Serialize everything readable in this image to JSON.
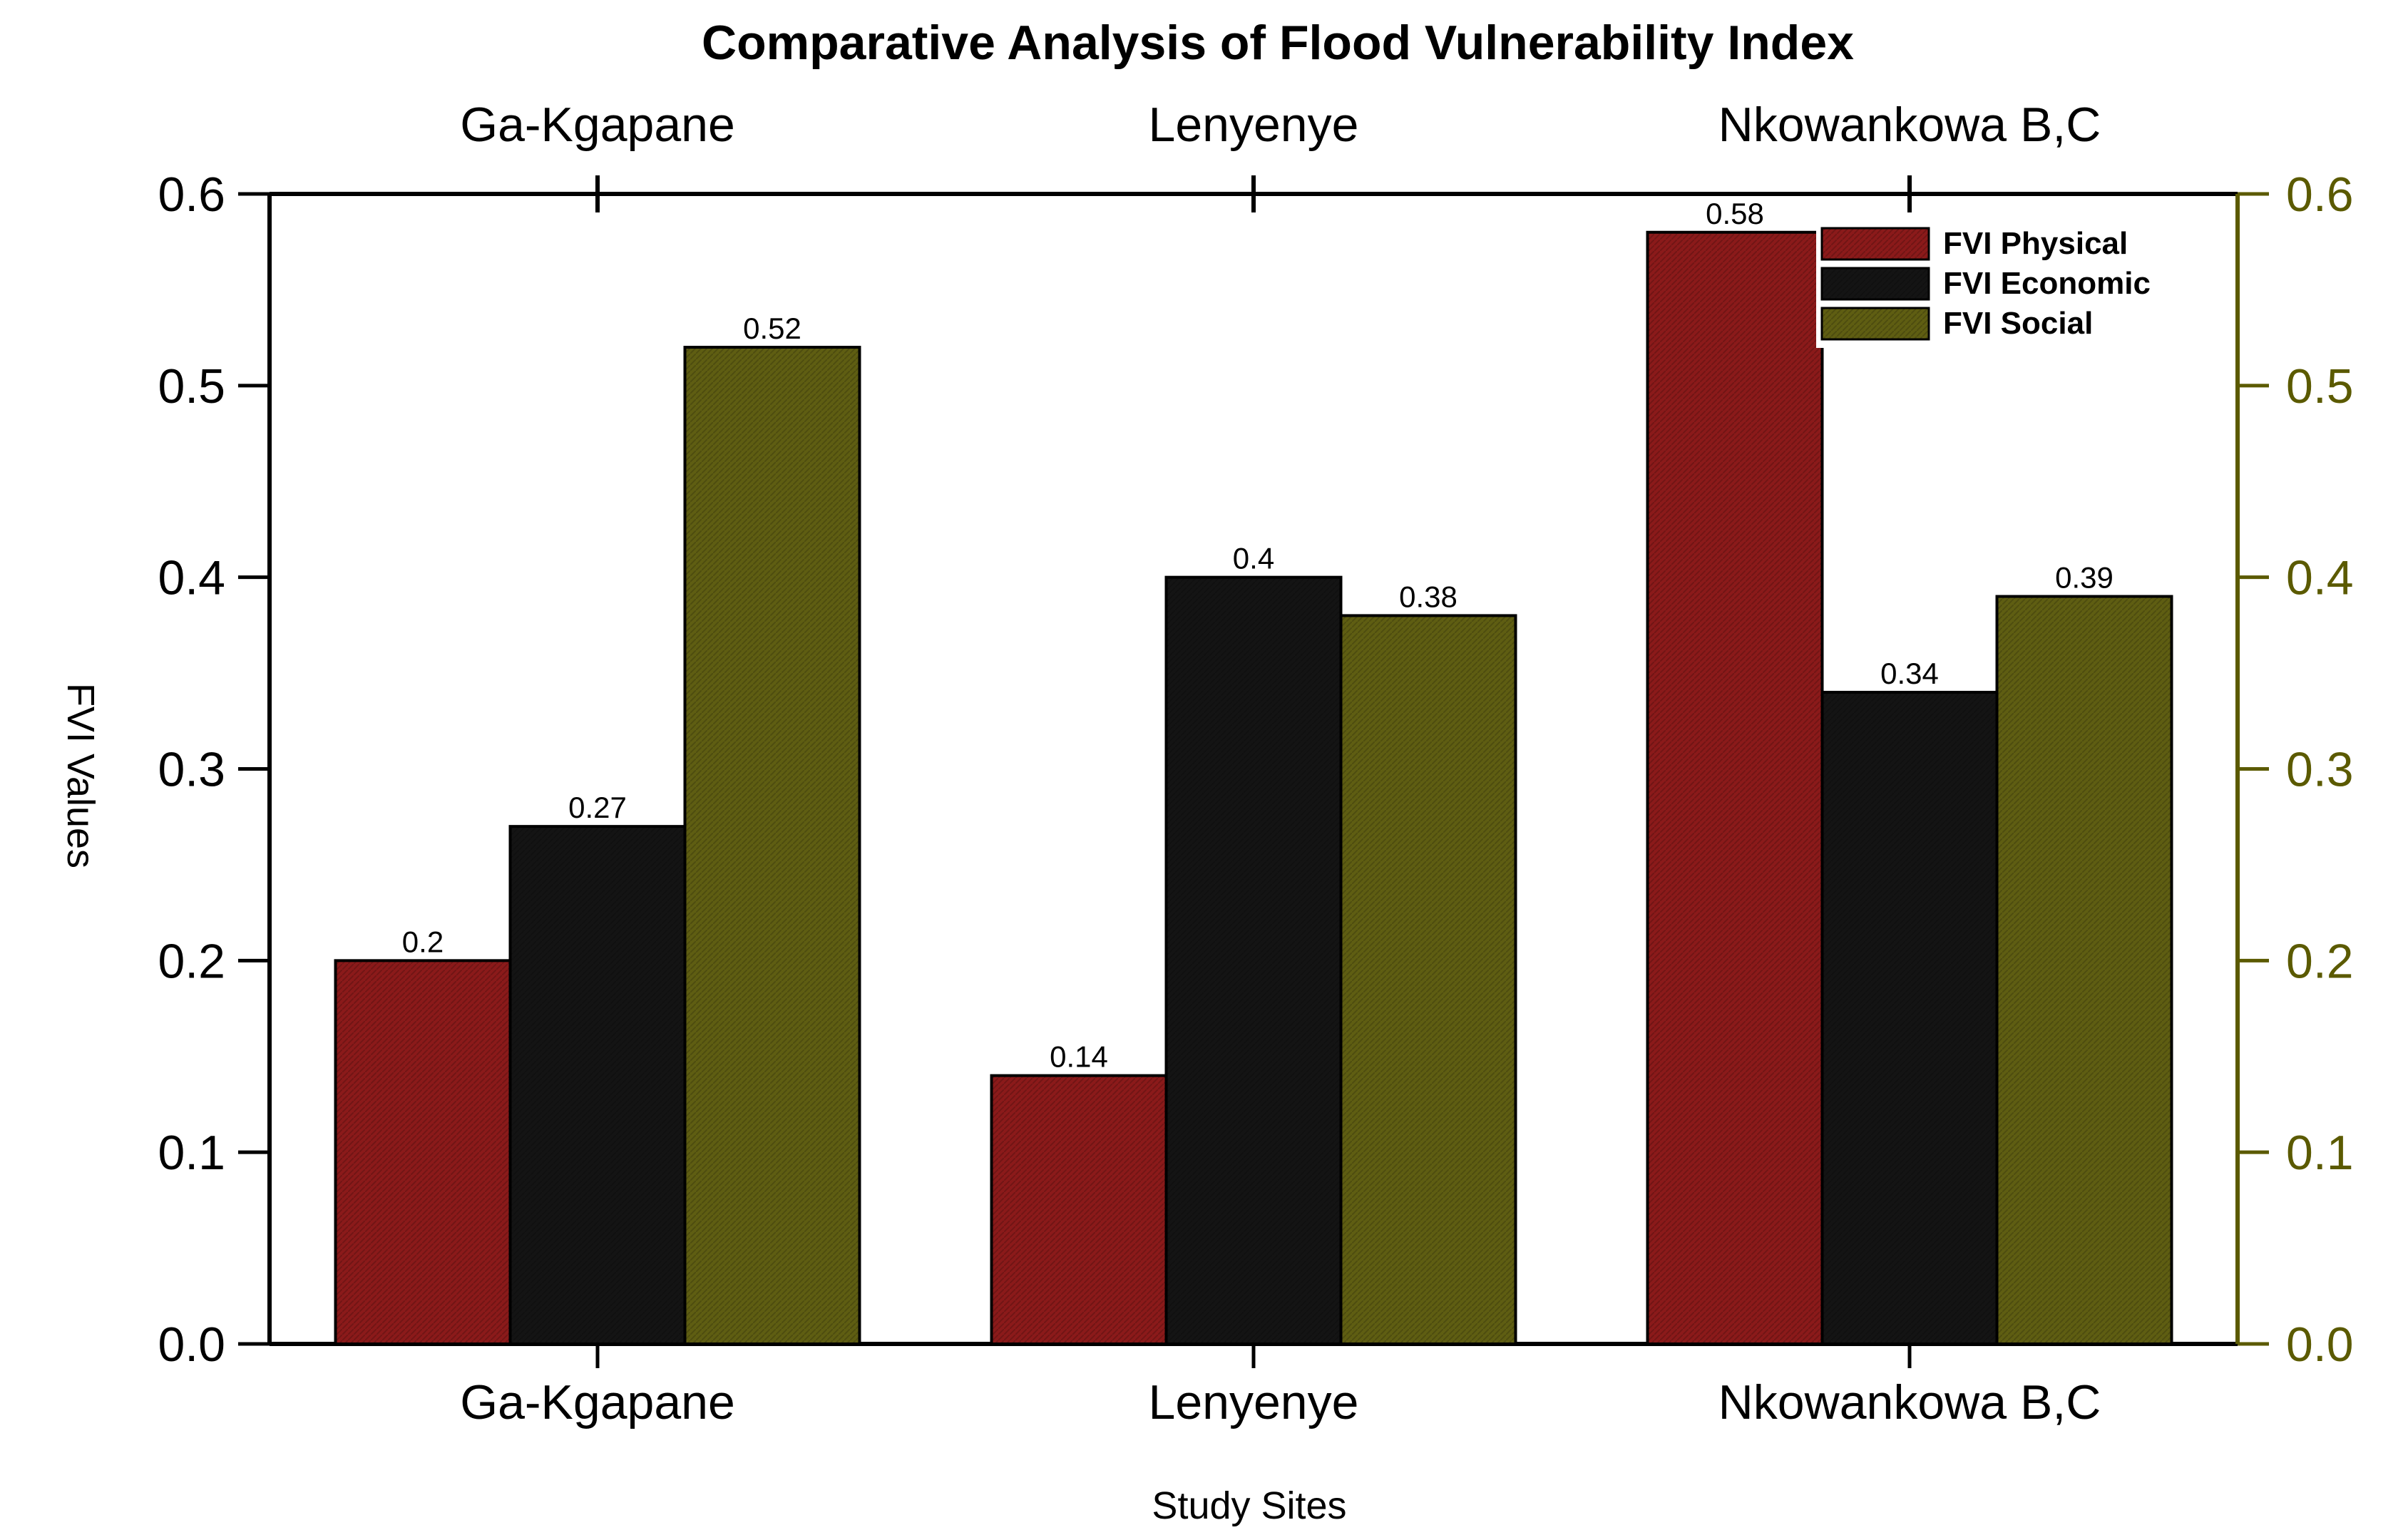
{
  "chart_data": {
    "type": "bar",
    "title": "Comparative Analysis of Flood Vulnerability Index",
    "xlabel": "Study Sites",
    "ylabel": "FVI Values",
    "categories": [
      "Ga-Kgapane",
      "Lenyenye",
      "Nkowankowa B,C"
    ],
    "top_axis_labels": [
      "Ga-Kgapane",
      "Lenyenye",
      "Nkowankowa B,C"
    ],
    "series": [
      {
        "name": "FVI Physical",
        "values": [
          0.2,
          0.14,
          0.58
        ],
        "labels": [
          "0.2",
          "0.14",
          "0.58"
        ],
        "color": "#8b1a1a"
      },
      {
        "name": "FVI Economic",
        "values": [
          0.27,
          0.4,
          0.34
        ],
        "labels": [
          "0.27",
          "0.4",
          "0.34"
        ],
        "color": "#141414"
      },
      {
        "name": "FVI Social",
        "values": [
          0.52,
          0.38,
          0.39
        ],
        "labels": [
          "0.52",
          "0.38",
          "0.39"
        ],
        "color": "#5f5e12"
      }
    ],
    "ylim": [
      0,
      0.6
    ],
    "yticks": [
      "0.0",
      "0.1",
      "0.2",
      "0.3",
      "0.4",
      "0.5",
      "0.6"
    ],
    "right_axis_color": "#5b5a00",
    "grid": false,
    "legend_position": "top-right"
  }
}
